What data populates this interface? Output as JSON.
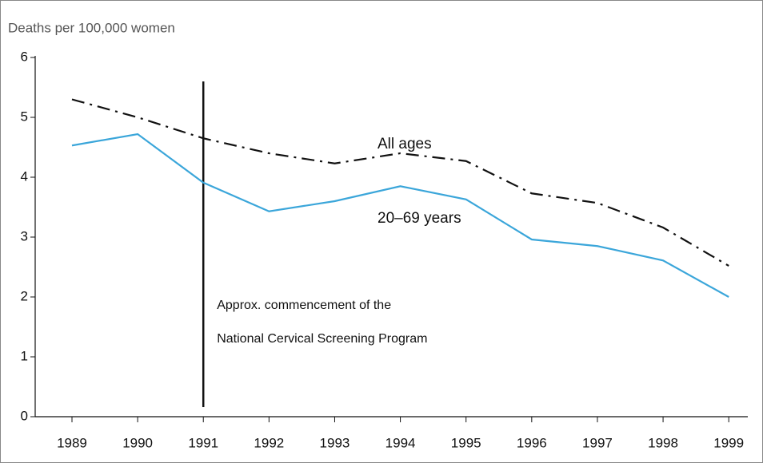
{
  "chart_data": {
    "type": "line",
    "y_axis_label": "Deaths per 100,000 women",
    "x": [
      1989,
      1990,
      1991,
      1992,
      1993,
      1994,
      1995,
      1996,
      1997,
      1998,
      1999
    ],
    "series": [
      {
        "name": "All ages",
        "color": "#111111",
        "dash": "dash-dot",
        "values": [
          5.3,
          5.0,
          4.65,
          4.4,
          4.23,
          4.4,
          4.27,
          3.73,
          3.57,
          3.16,
          2.52
        ]
      },
      {
        "name": "20–69 years",
        "color": "#3ba6da",
        "dash": "solid",
        "values": [
          4.53,
          4.72,
          3.91,
          3.43,
          3.6,
          3.85,
          3.63,
          2.96,
          2.85,
          2.61,
          2.0
        ]
      }
    ],
    "xlim": [
      1988.44,
      1999.29
    ],
    "xticks": [
      1989,
      1990,
      1991,
      1992,
      1993,
      1994,
      1995,
      1996,
      1997,
      1998,
      1999
    ],
    "ylim": [
      0,
      6
    ],
    "yticks": [
      0,
      1,
      2,
      3,
      4,
      5,
      6
    ],
    "grid": false,
    "annotation": {
      "x": 1991,
      "lines": [
        "Approx. commencement of the",
        "National Cervical Screening Program"
      ]
    }
  }
}
